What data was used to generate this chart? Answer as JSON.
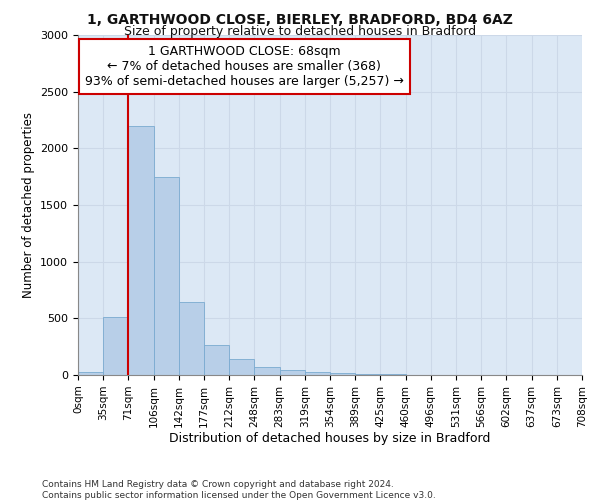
{
  "title_line1": "1, GARTHWOOD CLOSE, BIERLEY, BRADFORD, BD4 6AZ",
  "title_line2": "Size of property relative to detached houses in Bradford",
  "xlabel": "Distribution of detached houses by size in Bradford",
  "ylabel": "Number of detached properties",
  "footnote1": "Contains HM Land Registry data © Crown copyright and database right 2024.",
  "footnote2": "Contains public sector information licensed under the Open Government Licence v3.0.",
  "bar_values": [
    30,
    510,
    2200,
    1750,
    640,
    265,
    145,
    75,
    40,
    30,
    20,
    10,
    5,
    3,
    2,
    1,
    1,
    0,
    0,
    0
  ],
  "bin_labels": [
    "0sqm",
    "35sqm",
    "71sqm",
    "106sqm",
    "142sqm",
    "177sqm",
    "212sqm",
    "248sqm",
    "283sqm",
    "319sqm",
    "354sqm",
    "389sqm",
    "425sqm",
    "460sqm",
    "496sqm",
    "531sqm",
    "566sqm",
    "602sqm",
    "637sqm",
    "673sqm",
    "708sqm"
  ],
  "bar_color": "#b8cfe8",
  "bar_edge_color": "#7aaad0",
  "vline_color": "#cc0000",
  "vline_x": 1.5,
  "annotation_line1": "1 GARTHWOOD CLOSE: 68sqm",
  "annotation_line2": "← 7% of detached houses are smaller (368)",
  "annotation_line3": "93% of semi-detached houses are larger (5,257) →",
  "annotation_box_edge": "#cc0000",
  "grid_color": "#ccd8e8",
  "background_color": "#dce8f5",
  "fig_background": "#ffffff",
  "ylim": [
    0,
    3000
  ],
  "yticks": [
    0,
    500,
    1000,
    1500,
    2000,
    2500,
    3000
  ]
}
